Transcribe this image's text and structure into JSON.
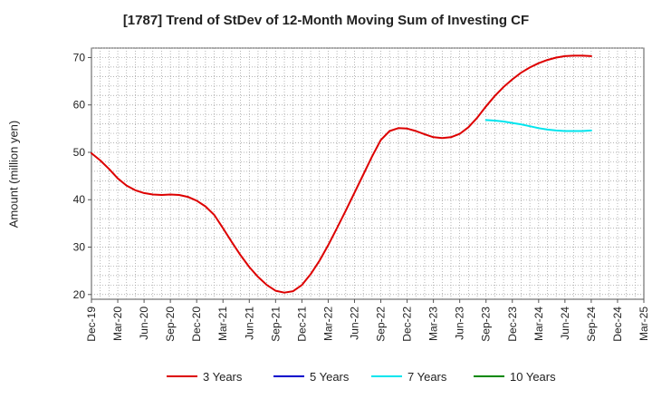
{
  "chart_data": {
    "type": "line",
    "title": "[1787]  Trend of StDev of 12-Month Moving Sum of Investing CF",
    "xlabel": "",
    "ylabel": "Amount (million yen)",
    "ylim": [
      19,
      72
    ],
    "yticks": [
      20,
      30,
      40,
      50,
      60,
      70
    ],
    "x_range": [
      "Dec-19",
      "Mar-25"
    ],
    "xticks": [
      "Dec-19",
      "Mar-20",
      "Jun-20",
      "Sep-20",
      "Dec-20",
      "Mar-21",
      "Jun-21",
      "Sep-21",
      "Dec-21",
      "Mar-22",
      "Jun-22",
      "Sep-22",
      "Dec-22",
      "Mar-23",
      "Jun-23",
      "Sep-23",
      "Dec-23",
      "Mar-24",
      "Jun-24",
      "Sep-24",
      "Dec-24",
      "Mar-25"
    ],
    "grid": true,
    "legend_position": "bottom",
    "series": [
      {
        "name": "3 Years",
        "color": "#dd0000",
        "x": [
          "Dec-19",
          "Jan-20",
          "Feb-20",
          "Mar-20",
          "Apr-20",
          "May-20",
          "Jun-20",
          "Jul-20",
          "Aug-20",
          "Sep-20",
          "Oct-20",
          "Nov-20",
          "Dec-20",
          "Jan-21",
          "Feb-21",
          "Mar-21",
          "Apr-21",
          "May-21",
          "Jun-21",
          "Jul-21",
          "Aug-21",
          "Sep-21",
          "Oct-21",
          "Nov-21",
          "Dec-21",
          "Jan-22",
          "Feb-22",
          "Mar-22",
          "Apr-22",
          "May-22",
          "Jun-22",
          "Jul-22",
          "Aug-22",
          "Sep-22",
          "Oct-22",
          "Nov-22",
          "Dec-22",
          "Jan-23",
          "Feb-23",
          "Mar-23",
          "Apr-23",
          "May-23",
          "Jun-23",
          "Jul-23",
          "Aug-23",
          "Sep-23",
          "Oct-23",
          "Nov-23",
          "Dec-23",
          "Jan-24",
          "Feb-24",
          "Mar-24",
          "Apr-24",
          "May-24",
          "Jun-24",
          "Jul-24",
          "Aug-24",
          "Sep-24"
        ],
        "values": [
          49.8,
          48.3,
          46.5,
          44.5,
          43.0,
          42.0,
          41.4,
          41.1,
          41.0,
          41.1,
          41.0,
          40.6,
          39.8,
          38.6,
          36.8,
          34.0,
          31.1,
          28.3,
          25.8,
          23.7,
          22.0,
          20.8,
          20.4,
          20.7,
          22.0,
          24.3,
          27.1,
          30.4,
          34.0,
          37.7,
          41.5,
          45.3,
          49.1,
          52.6,
          54.5,
          55.1,
          55.0,
          54.5,
          53.8,
          53.2,
          53.0,
          53.2,
          53.9,
          55.3,
          57.3,
          59.7,
          61.9,
          63.8,
          65.4,
          66.8,
          67.9,
          68.8,
          69.5,
          70.0,
          70.3,
          70.4,
          70.4,
          70.3
        ]
      },
      {
        "name": "5 Years",
        "color": "#0000cc",
        "x": [
          "Dec-21",
          "Jan-22",
          "Feb-22",
          "Mar-22",
          "Apr-22",
          "May-22",
          "Jun-22",
          "Jul-22",
          "Aug-22",
          "Sep-22",
          "Oct-22",
          "Nov-22",
          "Dec-22",
          "Jan-23",
          "Feb-23",
          "Mar-23",
          "Apr-23",
          "May-23",
          "Jun-23",
          "Jul-23",
          "Aug-23",
          "Sep-23",
          "Oct-23",
          "Nov-23",
          "Dec-23",
          "Jan-24",
          "Feb-24",
          "Mar-24",
          "Apr-24",
          "May-24",
          "Jun-24",
          "Jul-24",
          "Aug-24",
          "Sep-24"
        ],
        "values": [
          null,
          null,
          null,
          null,
          null,
          null,
          null,
          null,
          null,
          null,
          null,
          null,
          null,
          null,
          null,
          null,
          null,
          null,
          null,
          null,
          null,
          null,
          null,
          null,
          null,
          null,
          null,
          null,
          null,
          null,
          null,
          null,
          null,
          null
        ]
      },
      {
        "name": "7 Years",
        "color": "#00e5ee",
        "x": [
          "Sep-23",
          "Oct-23",
          "Nov-23",
          "Dec-23",
          "Jan-24",
          "Feb-24",
          "Mar-24",
          "Apr-24",
          "May-24",
          "Jun-24",
          "Jul-24",
          "Aug-24",
          "Sep-24"
        ],
        "values": [
          56.8,
          56.7,
          56.5,
          56.2,
          55.9,
          55.5,
          55.1,
          54.8,
          54.6,
          54.5,
          54.5,
          54.5,
          54.6
        ]
      },
      {
        "name": "10 Years",
        "color": "#008800",
        "x": [],
        "values": []
      }
    ]
  }
}
